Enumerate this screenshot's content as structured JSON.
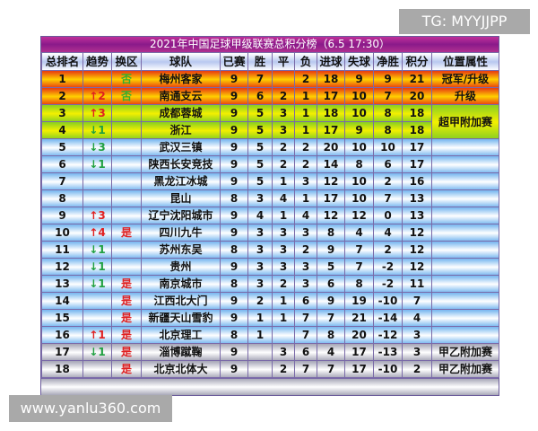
{
  "watermarks": {
    "tg": "TG: MYYJJPP",
    "site": "www.yanlu360.com"
  },
  "title": "2021年中国足球甲级联赛总积分榜（6.5 17:30）",
  "headers": [
    "总排名",
    "趋势",
    "换区",
    "球队",
    "已赛",
    "胜",
    "平",
    "负",
    "进球",
    "失球",
    "净胜",
    "积分",
    "位置属性"
  ],
  "rows": [
    {
      "rank": "1",
      "trend": "",
      "swap": "否",
      "team": "梅州客家",
      "p": "9",
      "w": "7",
      "d": "",
      "l": "2",
      "gf": "18",
      "ga": "9",
      "gd": "9",
      "pts": "21",
      "attr": "冠军/升级",
      "zone": "champ"
    },
    {
      "rank": "2",
      "trend": "↑2",
      "swap": "否",
      "team": "南通支云",
      "p": "9",
      "w": "6",
      "d": "2",
      "l": "1",
      "gf": "17",
      "ga": "10",
      "gd": "7",
      "pts": "20",
      "attr": "升级",
      "zone": "champ"
    },
    {
      "rank": "3",
      "trend": "↑3",
      "swap": "",
      "team": "成都蓉城",
      "p": "9",
      "w": "5",
      "d": "3",
      "l": "1",
      "gf": "18",
      "ga": "10",
      "gd": "8",
      "pts": "18",
      "attr": "超甲附加赛",
      "zone": "promo"
    },
    {
      "rank": "4",
      "trend": "↓1",
      "swap": "",
      "team": "浙江",
      "p": "9",
      "w": "5",
      "d": "3",
      "l": "1",
      "gf": "17",
      "ga": "9",
      "gd": "8",
      "pts": "18",
      "attr": null,
      "zone": "promo"
    },
    {
      "rank": "5",
      "trend": "↓3",
      "swap": "",
      "team": "武汉三镇",
      "p": "9",
      "w": "5",
      "d": "2",
      "l": "2",
      "gf": "20",
      "ga": "10",
      "gd": "10",
      "pts": "17",
      "attr": "",
      "zone": "mid"
    },
    {
      "rank": "6",
      "trend": "↓1",
      "swap": "",
      "team": "陕西长安竞技",
      "p": "9",
      "w": "5",
      "d": "2",
      "l": "2",
      "gf": "14",
      "ga": "8",
      "gd": "6",
      "pts": "17",
      "attr": "",
      "zone": "mid"
    },
    {
      "rank": "7",
      "trend": "",
      "swap": "",
      "team": "黑龙江冰城",
      "p": "9",
      "w": "5",
      "d": "1",
      "l": "3",
      "gf": "12",
      "ga": "10",
      "gd": "2",
      "pts": "16",
      "attr": "",
      "zone": "mid"
    },
    {
      "rank": "8",
      "trend": "",
      "swap": "",
      "team": "昆山",
      "p": "8",
      "w": "3",
      "d": "4",
      "l": "1",
      "gf": "17",
      "ga": "10",
      "gd": "7",
      "pts": "13",
      "attr": "",
      "zone": "mid"
    },
    {
      "rank": "9",
      "trend": "↑3",
      "swap": "",
      "team": "辽宁沈阳城市",
      "p": "9",
      "w": "4",
      "d": "1",
      "l": "4",
      "gf": "12",
      "ga": "12",
      "gd": "0",
      "pts": "13",
      "attr": "",
      "zone": "mid"
    },
    {
      "rank": "10",
      "trend": "↑4",
      "swap": "是",
      "team": "四川九牛",
      "p": "9",
      "w": "3",
      "d": "3",
      "l": "3",
      "gf": "8",
      "ga": "4",
      "gd": "4",
      "pts": "12",
      "attr": "",
      "zone": "mid"
    },
    {
      "rank": "11",
      "trend": "↓1",
      "swap": "",
      "team": "苏州东吴",
      "p": "8",
      "w": "3",
      "d": "3",
      "l": "2",
      "gf": "9",
      "ga": "7",
      "gd": "2",
      "pts": "12",
      "attr": "",
      "zone": "mid"
    },
    {
      "rank": "12",
      "trend": "↓1",
      "swap": "",
      "team": "贵州",
      "p": "9",
      "w": "3",
      "d": "3",
      "l": "3",
      "gf": "5",
      "ga": "7",
      "gd": "-2",
      "pts": "12",
      "attr": "",
      "zone": "mid"
    },
    {
      "rank": "13",
      "trend": "↓1",
      "swap": "是",
      "team": "南京城市",
      "p": "8",
      "w": "3",
      "d": "2",
      "l": "3",
      "gf": "6",
      "ga": "8",
      "gd": "-2",
      "pts": "11",
      "attr": "",
      "zone": "mid"
    },
    {
      "rank": "14",
      "trend": "",
      "swap": "是",
      "team": "江西北大门",
      "p": "9",
      "w": "2",
      "d": "1",
      "l": "6",
      "gf": "9",
      "ga": "19",
      "gd": "-10",
      "pts": "7",
      "attr": "",
      "zone": "mid"
    },
    {
      "rank": "15",
      "trend": "",
      "swap": "是",
      "team": "新疆天山雪豹",
      "p": "9",
      "w": "1",
      "d": "1",
      "l": "7",
      "gf": "7",
      "ga": "21",
      "gd": "-14",
      "pts": "4",
      "attr": "",
      "zone": "mid"
    },
    {
      "rank": "16",
      "trend": "↑1",
      "swap": "是",
      "team": "北京理工",
      "p": "8",
      "w": "1",
      "d": "",
      "l": "7",
      "gf": "8",
      "ga": "20",
      "gd": "-12",
      "pts": "3",
      "attr": "",
      "zone": "mid"
    },
    {
      "rank": "17",
      "trend": "↓1",
      "swap": "是",
      "team": "淄博蹴鞠",
      "p": "9",
      "w": "",
      "d": "3",
      "l": "6",
      "gf": "4",
      "ga": "17",
      "gd": "-13",
      "pts": "3",
      "attr": "甲乙附加赛",
      "zone": "rel"
    },
    {
      "rank": "18",
      "trend": "",
      "swap": "是",
      "team": "北京北体大",
      "p": "9",
      "w": "",
      "d": "2",
      "l": "7",
      "gf": "7",
      "ga": "17",
      "gd": "-10",
      "pts": "2",
      "attr": "甲乙附加赛",
      "zone": "rel"
    }
  ]
}
